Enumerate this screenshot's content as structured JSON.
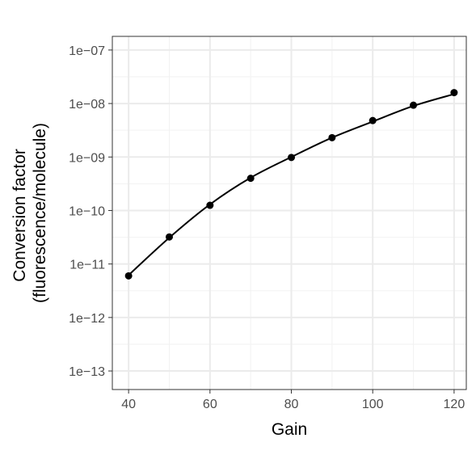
{
  "chart_data": {
    "type": "scatter",
    "title": "",
    "xlabel": "Gain",
    "ylabel_lines": [
      "Conversion factor",
      "(fluorescence/molecule)"
    ],
    "x_ticks": [
      40,
      60,
      80,
      100,
      120
    ],
    "x_tick_labels": [
      "40",
      "60",
      "80",
      "100",
      "120"
    ],
    "xlim": [
      36,
      123
    ],
    "y_scale": "log10",
    "y_ticks": [
      1e-13,
      1e-12,
      1e-11,
      1e-10,
      1e-09,
      1e-08,
      1e-07
    ],
    "y_tick_labels": [
      "1e−13",
      "1e−12",
      "1e−11",
      "1e−10",
      "1e−09",
      "1e−08",
      "1e−07"
    ],
    "ylim": [
      4.5e-14,
      1.8e-07
    ],
    "grid": true,
    "series": [
      {
        "kind": "points",
        "x": [
          40,
          50,
          60,
          70,
          80,
          90,
          100,
          110,
          120
        ],
        "y": [
          6e-12,
          3.2e-11,
          1.25e-10,
          4e-10,
          9.8e-10,
          2.3e-09,
          4.8e-09,
          9.3e-09,
          1.6e-08
        ],
        "color": "#000000"
      },
      {
        "kind": "line",
        "x": [
          40,
          50,
          60,
          70,
          80,
          90,
          100,
          110,
          120
        ],
        "y": [
          6.2e-12,
          3.1e-11,
          1.3e-10,
          4.1e-10,
          1e-09,
          2.3e-09,
          4.6e-09,
          9e-09,
          1.5e-08
        ],
        "color": "#000000"
      }
    ]
  }
}
